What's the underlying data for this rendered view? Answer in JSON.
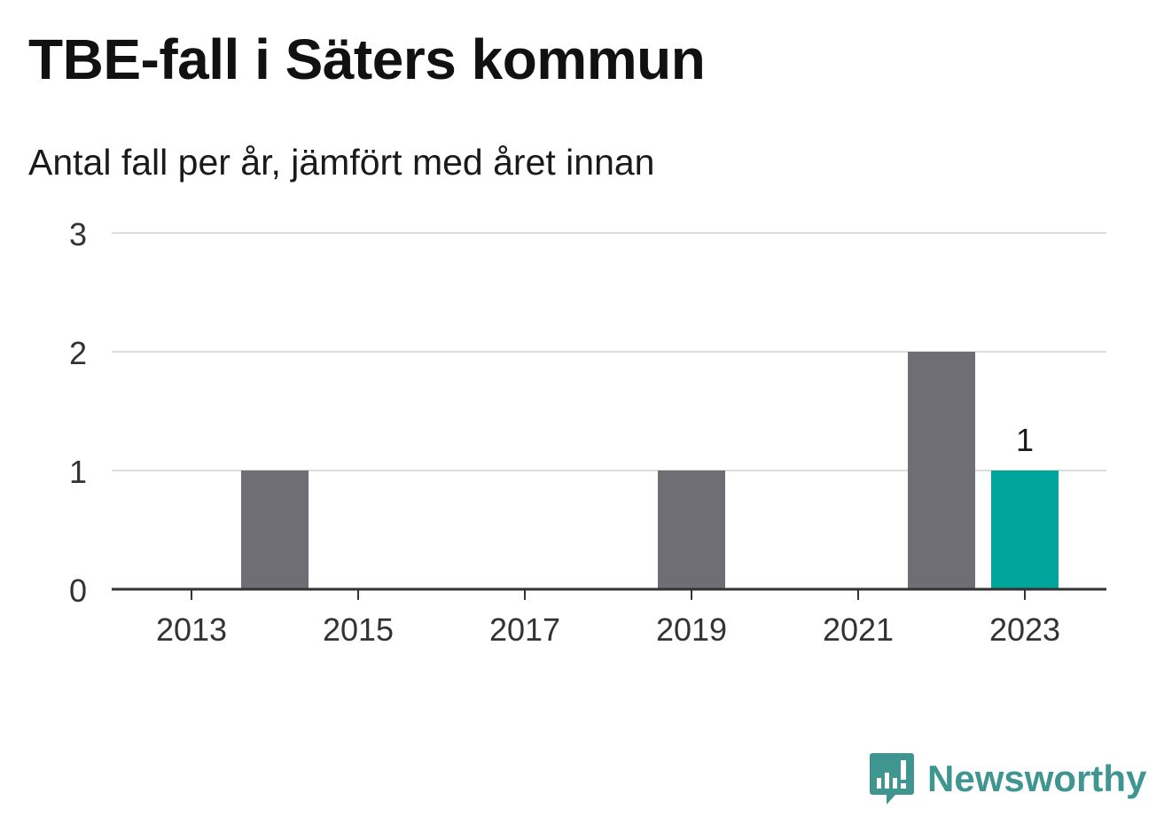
{
  "title": "TBE-fall i Säters kommun",
  "subtitle": "Antal fall per år, jämfört med året innan",
  "brand": {
    "name": "Newsworthy",
    "icon": "newsworthy-logo-icon",
    "color": "#3f958f"
  },
  "chart_data": {
    "type": "bar",
    "categories": [
      "2013",
      "2014",
      "2015",
      "2016",
      "2017",
      "2018",
      "2019",
      "2020",
      "2021",
      "2022",
      "2023"
    ],
    "values": [
      0,
      1,
      0,
      0,
      0,
      0,
      1,
      0,
      0,
      2,
      1
    ],
    "x_tick_labels": [
      "2013",
      "2015",
      "2017",
      "2019",
      "2021",
      "2023"
    ],
    "ylim": [
      0,
      3
    ],
    "y_ticks": [
      0,
      1,
      2,
      3
    ],
    "highlight_category": "2023",
    "highlight_label": "1",
    "colors": {
      "bar": "#6f6e74",
      "highlight": "#00a59b",
      "grid": "#dddddd",
      "axis": "#333333"
    },
    "grid": true,
    "xlabel": "",
    "ylabel": ""
  }
}
